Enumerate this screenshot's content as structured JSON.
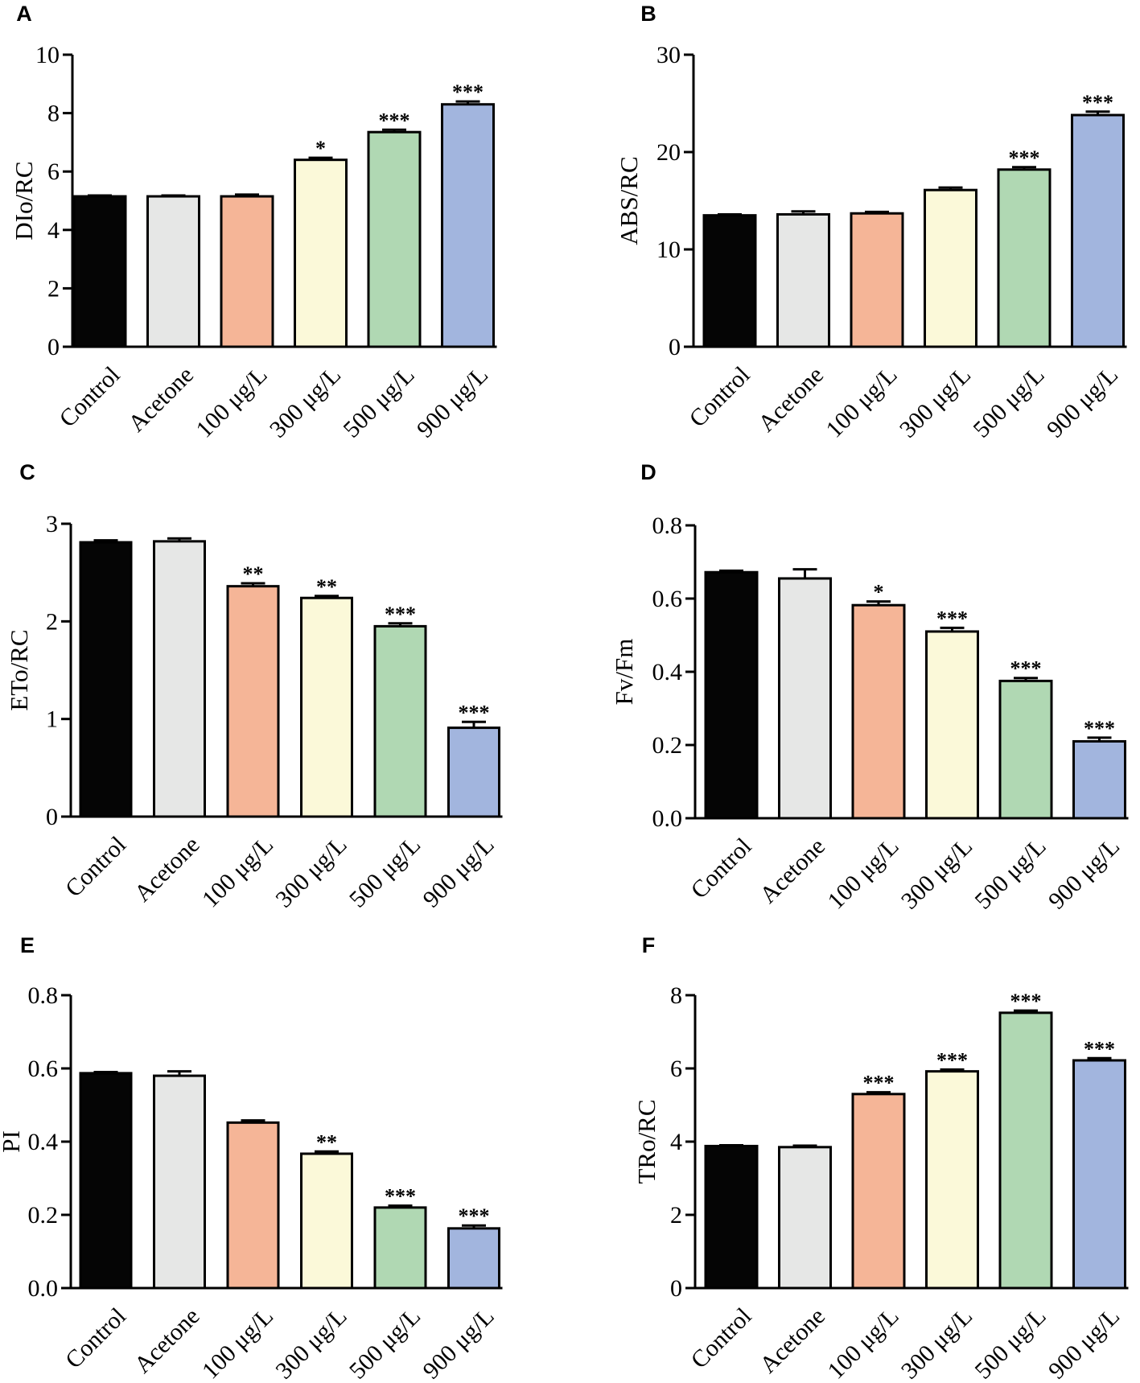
{
  "chart_data": [
    {
      "panel": "A",
      "type": "bar",
      "title": "",
      "xlabel": "",
      "ylabel": "DIo/RC",
      "ylim": [
        0,
        10
      ],
      "yticks": [
        "0",
        "2",
        "4",
        "6",
        "8",
        "10"
      ],
      "categories": [
        "Control",
        "Acetone",
        "100 μg/L",
        "300 μg/L",
        "500 μg/L",
        "900 μg/L"
      ],
      "values": [
        5.15,
        5.15,
        5.15,
        6.4,
        7.35,
        8.3
      ],
      "errors": [
        0.03,
        0.03,
        0.06,
        0.07,
        0.08,
        0.1
      ],
      "significance": [
        "",
        "",
        "",
        "*",
        "***",
        "***"
      ],
      "colors": [
        "#050505",
        "#e6e7e6",
        "#f5b597",
        "#fbf9d9",
        "#b0d8b3",
        "#a2b5de"
      ]
    },
    {
      "panel": "B",
      "type": "bar",
      "title": "",
      "xlabel": "",
      "ylabel": "ABS/RC",
      "ylim": [
        0,
        30
      ],
      "yticks": [
        "0",
        "10",
        "20",
        "30"
      ],
      "categories": [
        "Control",
        "Acetone",
        "100 μg/L",
        "300 μg/L",
        "500 μg/L",
        "900 μg/L"
      ],
      "values": [
        13.5,
        13.6,
        13.7,
        16.1,
        18.2,
        23.8
      ],
      "errors": [
        0.1,
        0.3,
        0.15,
        0.25,
        0.25,
        0.35
      ],
      "significance": [
        "",
        "",
        "",
        "",
        "***",
        "***"
      ],
      "colors": [
        "#050505",
        "#e6e7e6",
        "#f5b597",
        "#fbf9d9",
        "#b0d8b3",
        "#a2b5de"
      ]
    },
    {
      "panel": "C",
      "type": "bar",
      "title": "",
      "xlabel": "",
      "ylabel": "ETo/RC",
      "ylim": [
        0,
        3
      ],
      "yticks": [
        "0",
        "1",
        "2",
        "3"
      ],
      "categories": [
        "Control",
        "Acetone",
        "100 μg/L",
        "300 μg/L",
        "500 μg/L",
        "900 μg/L"
      ],
      "values": [
        2.81,
        2.82,
        2.36,
        2.24,
        1.95,
        0.91
      ],
      "errors": [
        0.02,
        0.03,
        0.03,
        0.02,
        0.03,
        0.06
      ],
      "significance": [
        "",
        "",
        "**",
        "**",
        "***",
        "***"
      ],
      "colors": [
        "#050505",
        "#e6e7e6",
        "#f5b597",
        "#fbf9d9",
        "#b0d8b3",
        "#a2b5de"
      ]
    },
    {
      "panel": "D",
      "type": "bar",
      "title": "",
      "xlabel": "",
      "ylabel": "Fv/Fm",
      "ylim": [
        0,
        0.8
      ],
      "yticks": [
        "0.0",
        "0.2",
        "0.4",
        "0.6",
        "0.8"
      ],
      "categories": [
        "Control",
        "Acetone",
        "100 μg/L",
        "300 μg/L",
        "500 μg/L",
        "900 μg/L"
      ],
      "values": [
        0.672,
        0.655,
        0.582,
        0.51,
        0.375,
        0.21
      ],
      "errors": [
        0.004,
        0.025,
        0.01,
        0.01,
        0.008,
        0.01
      ],
      "significance": [
        "",
        "",
        "*",
        "***",
        "***",
        "***"
      ],
      "colors": [
        "#050505",
        "#e6e7e6",
        "#f5b597",
        "#fbf9d9",
        "#b0d8b3",
        "#a2b5de"
      ]
    },
    {
      "panel": "E",
      "type": "bar",
      "title": "",
      "xlabel": "",
      "ylabel": "PI",
      "ylim": [
        0,
        0.8
      ],
      "yticks": [
        "0.0",
        "0.2",
        "0.4",
        "0.6",
        "0.8"
      ],
      "categories": [
        "Control",
        "Acetone",
        "100 μg/L",
        "300 μg/L",
        "500 μg/L",
        "900 μg/L"
      ],
      "values": [
        0.587,
        0.58,
        0.452,
        0.367,
        0.22,
        0.163
      ],
      "errors": [
        0.003,
        0.012,
        0.006,
        0.006,
        0.005,
        0.008
      ],
      "significance": [
        "",
        "",
        "",
        "**",
        "***",
        "***"
      ],
      "colors": [
        "#050505",
        "#e6e7e6",
        "#f5b597",
        "#fbf9d9",
        "#b0d8b3",
        "#a2b5de"
      ]
    },
    {
      "panel": "F",
      "type": "bar",
      "title": "",
      "xlabel": "",
      "ylabel": "TRo/RC",
      "ylim": [
        0,
        8
      ],
      "yticks": [
        "0",
        "2",
        "4",
        "6",
        "8"
      ],
      "categories": [
        "Control",
        "Acetone",
        "100 μg/L",
        "300 μg/L",
        "500 μg/L",
        "900 μg/L"
      ],
      "values": [
        3.88,
        3.85,
        5.3,
        5.92,
        7.52,
        6.22
      ],
      "errors": [
        0.02,
        0.04,
        0.05,
        0.05,
        0.06,
        0.06
      ],
      "significance": [
        "",
        "",
        "***",
        "***",
        "***",
        "***"
      ],
      "colors": [
        "#050505",
        "#e6e7e6",
        "#f5b597",
        "#fbf9d9",
        "#b0d8b3",
        "#a2b5de"
      ]
    }
  ]
}
